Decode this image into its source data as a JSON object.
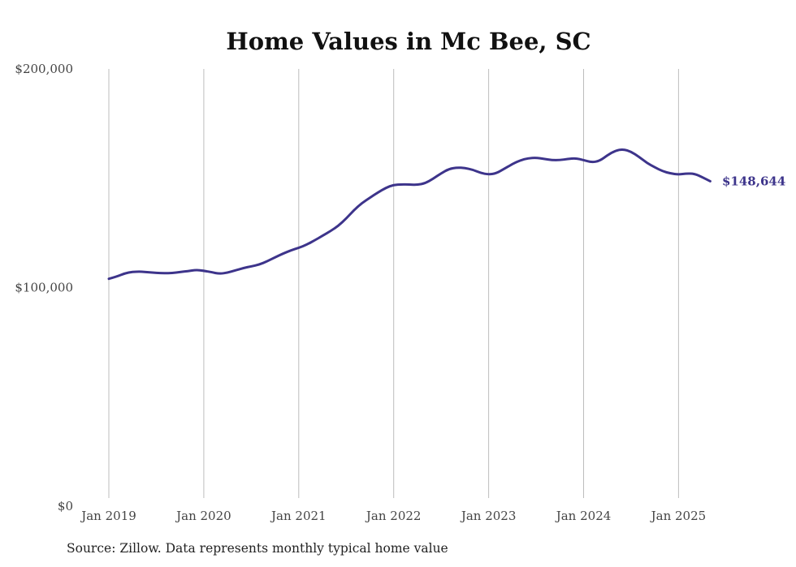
{
  "chart_data": {
    "type": "line",
    "title": "Home Values in Mc Bee, SC",
    "source": "Source: Zillow. Data represents monthly typical home value",
    "ylim": [
      0,
      200000
    ],
    "y_ticks": [
      {
        "value": 0,
        "label": "$0"
      },
      {
        "value": 100000,
        "label": "$100,000"
      },
      {
        "value": 200000,
        "label": "$200,000"
      }
    ],
    "x_ticks": [
      {
        "value": "2019-01",
        "label": "Jan 2019"
      },
      {
        "value": "2020-01",
        "label": "Jan 2020"
      },
      {
        "value": "2021-01",
        "label": "Jan 2021"
      },
      {
        "value": "2022-01",
        "label": "Jan 2022"
      },
      {
        "value": "2023-01",
        "label": "Jan 2023"
      },
      {
        "value": "2024-01",
        "label": "Jan 2024"
      },
      {
        "value": "2025-01",
        "label": "Jan 2025"
      }
    ],
    "grid": "vertical",
    "line_color": "#3d348b",
    "end_label": "$148,644",
    "series": [
      {
        "x": [
          "2019-01",
          "2019-02",
          "2019-03",
          "2019-04",
          "2019-05",
          "2019-06",
          "2019-07",
          "2019-08",
          "2019-09",
          "2019-10",
          "2019-11",
          "2019-12",
          "2020-01",
          "2020-02",
          "2020-03",
          "2020-04",
          "2020-05",
          "2020-06",
          "2020-07",
          "2020-08",
          "2020-09",
          "2020-10",
          "2020-11",
          "2020-12",
          "2021-01",
          "2021-02",
          "2021-03",
          "2021-04",
          "2021-05",
          "2021-06",
          "2021-07",
          "2021-08",
          "2021-09",
          "2021-10",
          "2021-11",
          "2021-12",
          "2022-01",
          "2022-02",
          "2022-03",
          "2022-04",
          "2022-05",
          "2022-06",
          "2022-07",
          "2022-08",
          "2022-09",
          "2022-10",
          "2022-11",
          "2022-12",
          "2023-01",
          "2023-02",
          "2023-03",
          "2023-04",
          "2023-05",
          "2023-06",
          "2023-07",
          "2023-08",
          "2023-09",
          "2023-10",
          "2023-11",
          "2023-12",
          "2024-01",
          "2024-02",
          "2024-03",
          "2024-04",
          "2024-05",
          "2024-06",
          "2024-07",
          "2024-08",
          "2024-09",
          "2024-10",
          "2024-11",
          "2024-12",
          "2025-01",
          "2025-02",
          "2025-03",
          "2025-04",
          "2025-05"
        ],
        "values": [
          104000,
          105000,
          106500,
          107200,
          107300,
          107000,
          106700,
          106600,
          106600,
          107100,
          107500,
          108100,
          107700,
          107000,
          106300,
          106800,
          107900,
          108900,
          109700,
          110500,
          112000,
          113800,
          115500,
          117000,
          118200,
          119600,
          121600,
          123700,
          125800,
          128200,
          131600,
          135500,
          138700,
          141100,
          143500,
          145600,
          147000,
          147200,
          147100,
          147000,
          147700,
          149800,
          152300,
          154300,
          154900,
          154700,
          153900,
          152400,
          151700,
          152300,
          154400,
          156500,
          158200,
          159200,
          159400,
          158900,
          158300,
          158300,
          158800,
          159200,
          158300,
          157300,
          157900,
          160500,
          162600,
          163300,
          162200,
          159800,
          157000,
          155000,
          153200,
          152200,
          151700,
          152200,
          152100,
          150500,
          148644
        ]
      }
    ]
  }
}
